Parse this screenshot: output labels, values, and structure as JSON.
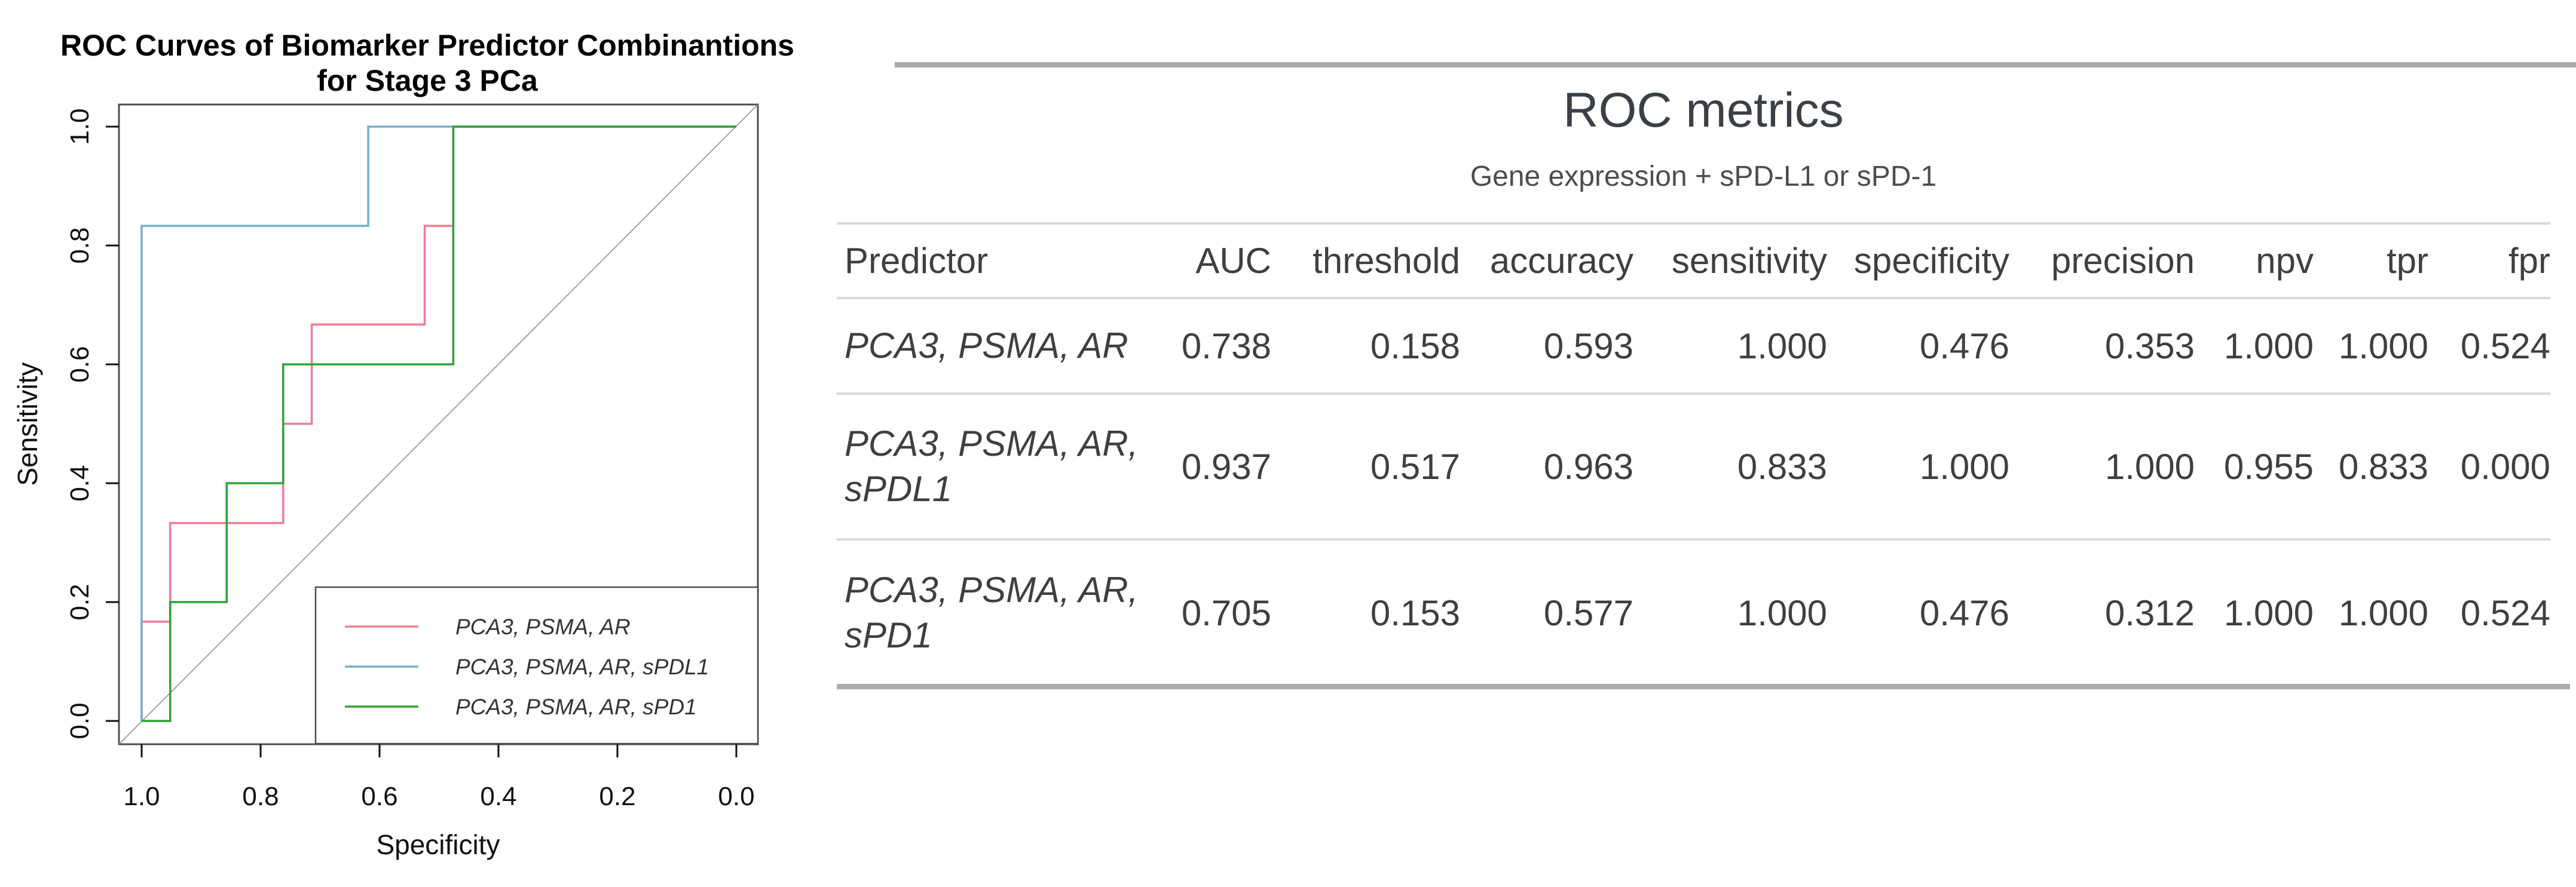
{
  "page": {
    "background": "#ffffff"
  },
  "chart": {
    "title_line1": "ROC Curves of Biomarker Predictor Combinantions",
    "title_line2": "for Stage 3 PCa",
    "xlabel": "Specificity",
    "ylabel": "Sensitivity"
  },
  "chart_data": {
    "type": "line",
    "subtype": "roc-step-curves",
    "title": "ROC Curves of Biomarker Predictor Combinantions for Stage 3 PCa",
    "xlabel": "Specificity",
    "ylabel": "Sensitivity",
    "x_reversed": true,
    "xlim": [
      1.0,
      0.0
    ],
    "ylim": [
      0.0,
      1.0
    ],
    "x_ticks": {
      "labels": [
        "1.0",
        "0.8",
        "0.6",
        "0.4",
        "0.2",
        "0.0"
      ],
      "values": [
        1.0,
        0.8,
        0.6,
        0.4,
        0.2,
        0.0
      ]
    },
    "y_ticks": {
      "labels": [
        "0.0",
        "0.2",
        "0.4",
        "0.6",
        "0.8",
        "1.0"
      ],
      "values": [
        0.0,
        0.2,
        0.4,
        0.6,
        0.8,
        1.0
      ]
    },
    "grid": false,
    "diagonal_reference": {
      "from": [
        1.0,
        0.0
      ],
      "to": [
        0.0,
        1.0
      ],
      "color": "#9a9a9a"
    },
    "legend_position": "bottom-right",
    "axis_color": "#4d4d4d",
    "text_color": "#111111",
    "series": [
      {
        "name": "PCA3, PSMA, AR",
        "color": "#ef7e97",
        "points": [
          [
            1.0,
            0.0
          ],
          [
            1.0,
            0.167
          ],
          [
            0.952,
            0.167
          ],
          [
            0.952,
            0.333
          ],
          [
            0.762,
            0.333
          ],
          [
            0.762,
            0.5
          ],
          [
            0.714,
            0.5
          ],
          [
            0.714,
            0.667
          ],
          [
            0.524,
            0.667
          ],
          [
            0.524,
            0.833
          ],
          [
            0.476,
            0.833
          ],
          [
            0.476,
            1.0
          ],
          [
            0.0,
            1.0
          ]
        ]
      },
      {
        "name": "PCA3, PSMA, AR, sPDL1",
        "color": "#78aecb",
        "points": [
          [
            1.0,
            0.0
          ],
          [
            1.0,
            0.833
          ],
          [
            0.619,
            0.833
          ],
          [
            0.619,
            1.0
          ],
          [
            0.0,
            1.0
          ]
        ]
      },
      {
        "name": "PCA3, PSMA, AR, sPD1",
        "color": "#2fa435",
        "points": [
          [
            1.0,
            0.0
          ],
          [
            0.952,
            0.0
          ],
          [
            0.952,
            0.2
          ],
          [
            0.857,
            0.2
          ],
          [
            0.857,
            0.4
          ],
          [
            0.762,
            0.4
          ],
          [
            0.762,
            0.6
          ],
          [
            0.476,
            0.6
          ],
          [
            0.476,
            1.0
          ],
          [
            0.0,
            1.0
          ]
        ]
      }
    ]
  },
  "table": {
    "title": "ROC metrics",
    "subtitle": "Gene expression + sPD-L1 or sPD-1",
    "columns": [
      "Predictor",
      "AUC",
      "threshold",
      "accuracy",
      "sensitivity",
      "specificity",
      "precision",
      "npv",
      "tpr",
      "fpr"
    ],
    "rows": [
      {
        "predictor": "PCA3, PSMA, AR",
        "values": [
          "0.738",
          "0.158",
          "0.593",
          "1.000",
          "0.476",
          "0.353",
          "1.000",
          "1.000",
          "0.524"
        ]
      },
      {
        "predictor": "PCA3, PSMA, AR, sPDL1",
        "values": [
          "0.937",
          "0.517",
          "0.963",
          "0.833",
          "1.000",
          "1.000",
          "0.955",
          "0.833",
          "0.000"
        ]
      },
      {
        "predictor": "PCA3, PSMA, AR, sPD1",
        "values": [
          "0.705",
          "0.153",
          "0.577",
          "1.000",
          "0.476",
          "0.312",
          "1.000",
          "1.000",
          "0.524"
        ]
      }
    ],
    "rule_color": "#d9d9d9",
    "bar_color": "#ababab",
    "text_color": "#3f3f3f"
  }
}
